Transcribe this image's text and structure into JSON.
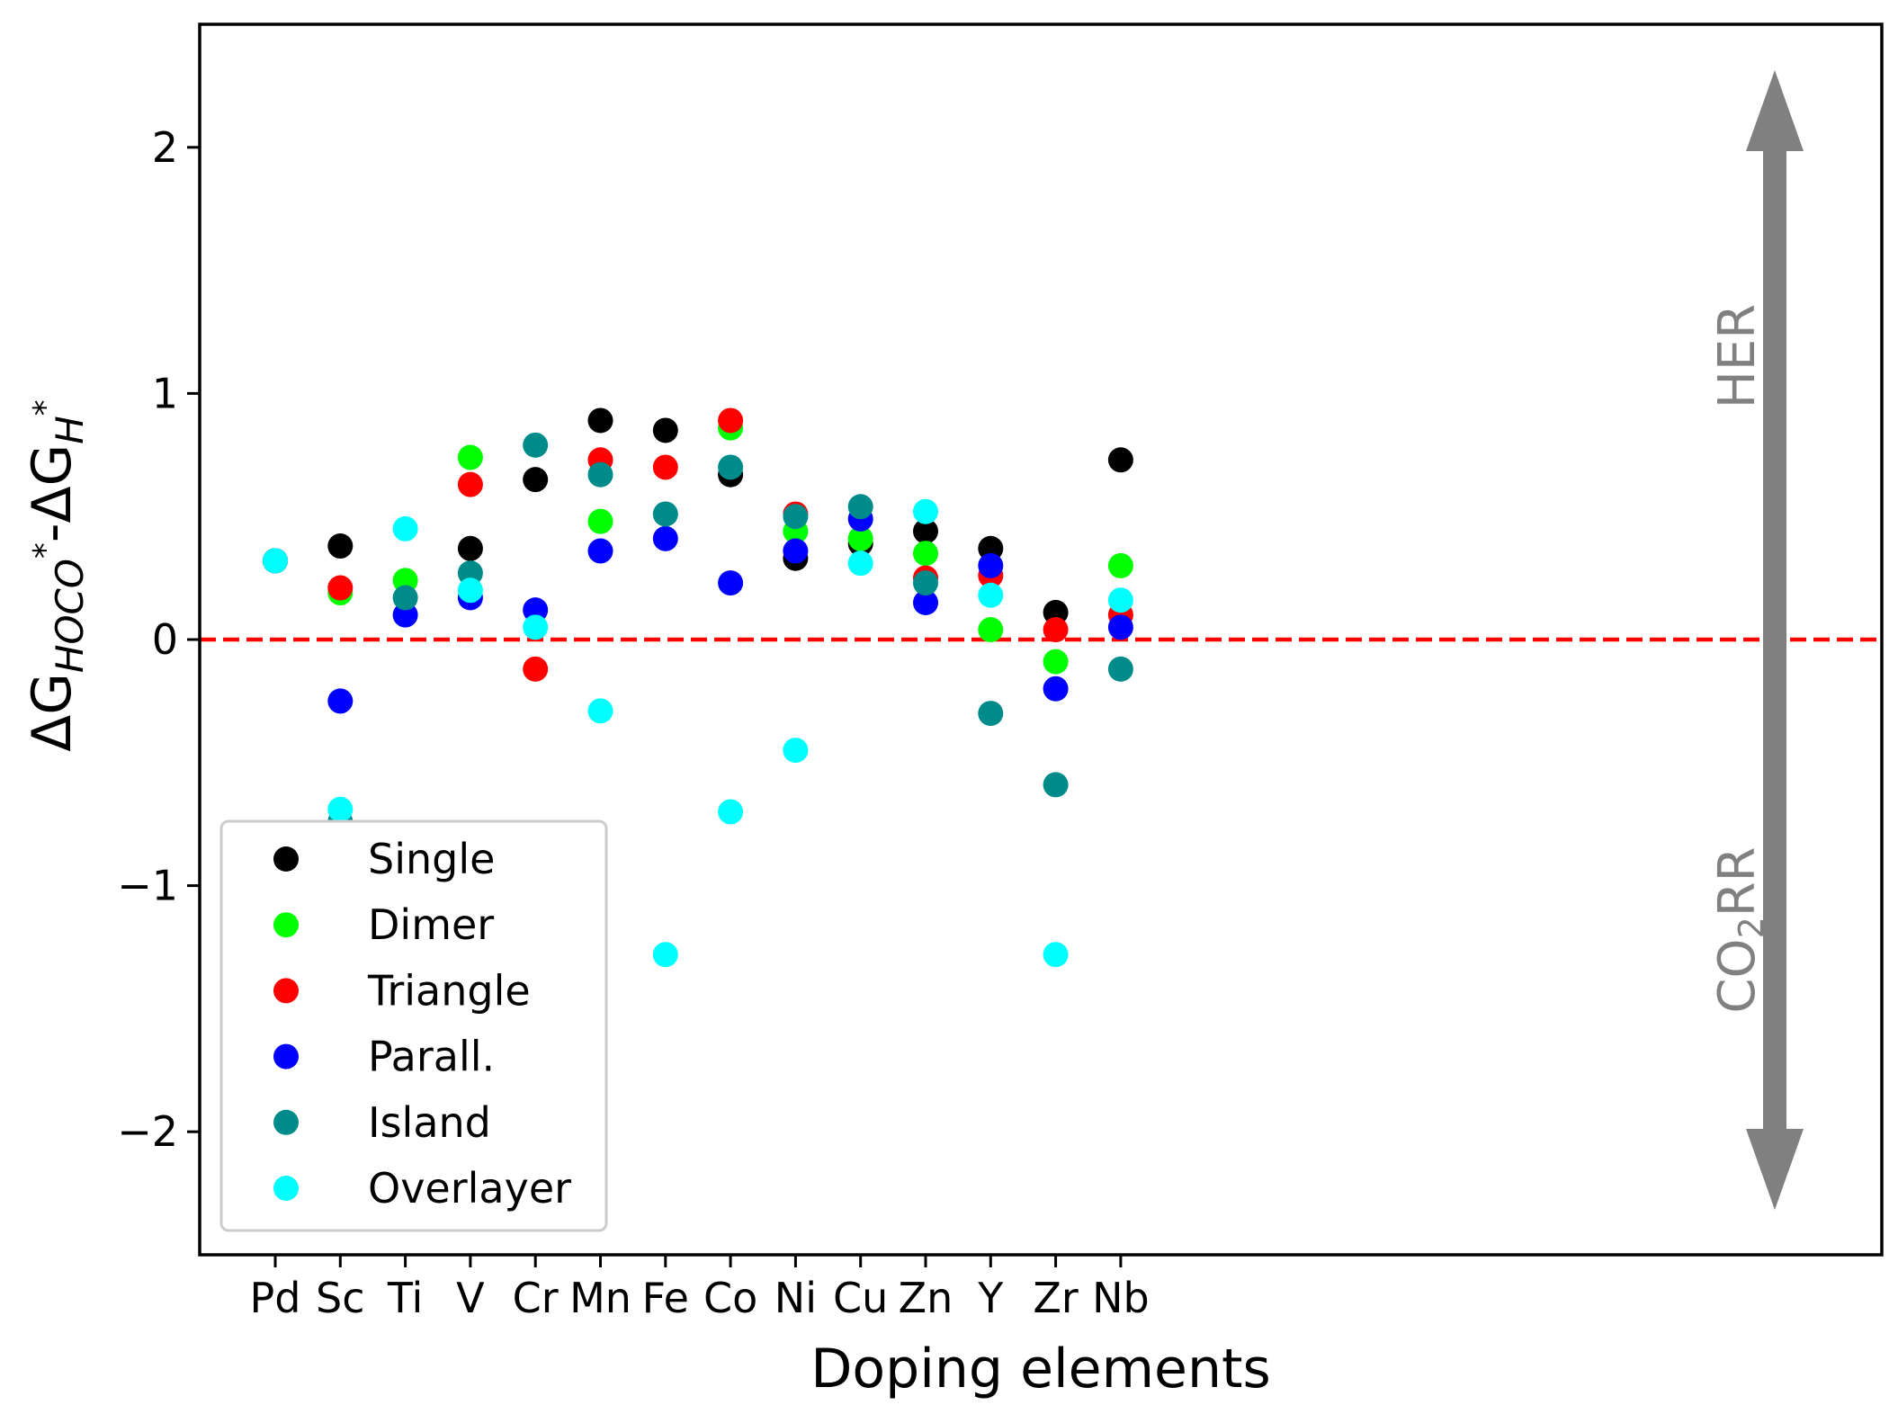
{
  "chart_data": {
    "type": "scatter",
    "title": "",
    "xlabel": "Doping elements",
    "ylabel": {
      "base": "ΔG",
      "sub1": "HOCO",
      "sup1": "*",
      "mid": "-ΔG",
      "sub2": "H",
      "sup2": "*"
    },
    "categories": [
      "Pd",
      "Sc",
      "Ti",
      "V",
      "Cr",
      "Mn",
      "Fe",
      "Co",
      "Ni",
      "Cu",
      "Zn",
      "Y",
      "Zr",
      "Nb"
    ],
    "ylim": [
      -2.5,
      2.5
    ],
    "yticks": [
      -2,
      -1,
      0,
      1,
      2
    ],
    "ytick_labels": [
      "−2",
      "−1",
      "0",
      "1",
      "2"
    ],
    "grid": false,
    "legend_position": "lower-left",
    "reference_line": {
      "y": 0,
      "color": "#ff0000",
      "style": "dashed"
    },
    "series": [
      {
        "name": "Single",
        "color": "#000000",
        "values": [
          0.32,
          0.38,
          null,
          0.37,
          0.65,
          0.89,
          0.85,
          0.67,
          0.33,
          0.39,
          0.44,
          0.37,
          0.11,
          0.73
        ]
      },
      {
        "name": "Dimer",
        "color": "#00ff00",
        "values": [
          0.32,
          0.19,
          0.24,
          0.74,
          null,
          0.48,
          null,
          0.86,
          0.44,
          0.41,
          0.35,
          0.04,
          -0.09,
          0.3
        ]
      },
      {
        "name": "Triangle",
        "color": "#ff0000",
        "values": [
          0.32,
          0.21,
          null,
          0.63,
          -0.12,
          0.73,
          0.7,
          0.89,
          0.51,
          null,
          0.25,
          0.26,
          0.04,
          0.1
        ]
      },
      {
        "name": "Parall.",
        "color": "#0000ff",
        "values": [
          0.32,
          -0.25,
          0.1,
          0.17,
          0.12,
          0.36,
          0.41,
          0.23,
          0.36,
          0.49,
          0.15,
          0.3,
          -0.2,
          0.05
        ]
      },
      {
        "name": "Island",
        "color": "#008b8b",
        "values": [
          0.32,
          -0.74,
          0.17,
          0.27,
          0.79,
          0.67,
          0.51,
          0.7,
          0.5,
          0.54,
          0.23,
          -0.3,
          -0.59,
          -0.12
        ]
      },
      {
        "name": "Overlayer",
        "color": "#00ffff",
        "values": [
          0.32,
          -0.69,
          0.45,
          0.2,
          0.05,
          -0.29,
          -1.28,
          -0.7,
          -0.45,
          0.31,
          0.52,
          0.18,
          -1.28,
          0.16
        ]
      }
    ],
    "annotations": {
      "arrow_color": "#808080",
      "upper_label": "HER",
      "lower_label": {
        "base": "CO",
        "sub": "2",
        "rest": "RR"
      }
    }
  }
}
